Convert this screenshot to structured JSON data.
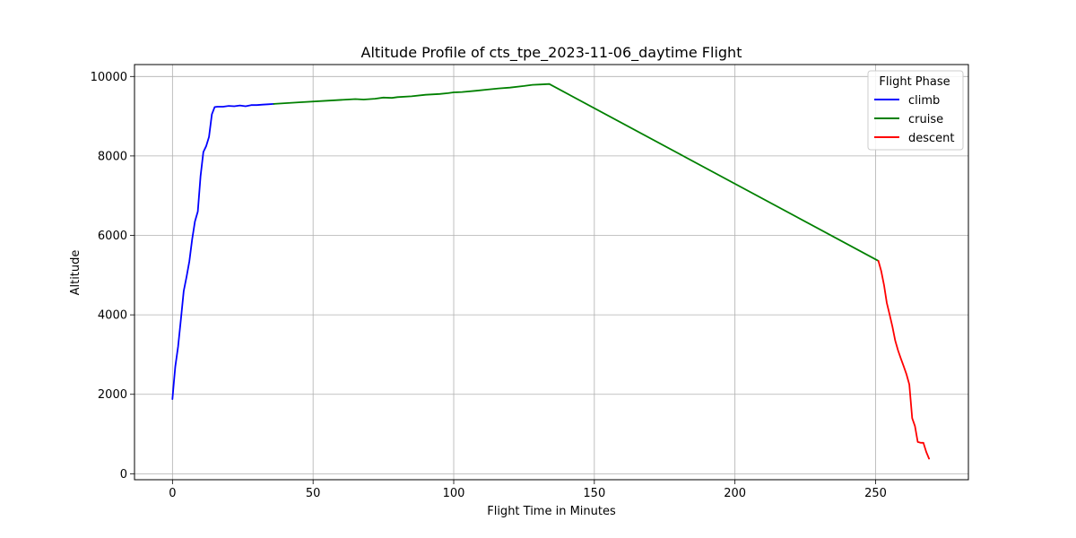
{
  "chart_data": {
    "type": "line",
    "title": "Altitude Profile of cts_tpe_2023-11-06_daytime Flight",
    "xlabel": "Flight Time in Minutes",
    "ylabel": "Altitude",
    "xlim": [
      -13.5,
      283
    ],
    "ylim": [
      -150,
      10300
    ],
    "xticks": [
      0,
      50,
      100,
      150,
      200,
      250
    ],
    "yticks": [
      0,
      2000,
      4000,
      6000,
      8000,
      10000
    ],
    "grid": true,
    "legend": {
      "title": "Flight Phase",
      "placement": "top-right"
    },
    "series": [
      {
        "name": "climb",
        "color": "#0000ff",
        "points": [
          [
            0,
            1880
          ],
          [
            0.5,
            2300
          ],
          [
            1,
            2700
          ],
          [
            2,
            3200
          ],
          [
            3,
            3900
          ],
          [
            4,
            4600
          ],
          [
            5,
            4950
          ],
          [
            6,
            5350
          ],
          [
            7,
            5900
          ],
          [
            8,
            6350
          ],
          [
            9,
            6600
          ],
          [
            10,
            7500
          ],
          [
            11,
            8100
          ],
          [
            12,
            8250
          ],
          [
            13,
            8480
          ],
          [
            14,
            9050
          ],
          [
            15,
            9230
          ],
          [
            16,
            9240
          ],
          [
            18,
            9240
          ],
          [
            20,
            9260
          ],
          [
            22,
            9250
          ],
          [
            24,
            9270
          ],
          [
            26,
            9250
          ],
          [
            28,
            9280
          ],
          [
            30,
            9280
          ],
          [
            32,
            9290
          ],
          [
            34,
            9300
          ],
          [
            36,
            9310
          ]
        ]
      },
      {
        "name": "cruise",
        "color": "#008000",
        "points": [
          [
            36,
            9310
          ],
          [
            45,
            9350
          ],
          [
            55,
            9390
          ],
          [
            65,
            9430
          ],
          [
            68,
            9420
          ],
          [
            72,
            9440
          ],
          [
            75,
            9470
          ],
          [
            78,
            9460
          ],
          [
            80,
            9480
          ],
          [
            85,
            9500
          ],
          [
            90,
            9540
          ],
          [
            95,
            9560
          ],
          [
            98,
            9580
          ],
          [
            100,
            9600
          ],
          [
            103,
            9610
          ],
          [
            108,
            9640
          ],
          [
            112,
            9670
          ],
          [
            116,
            9700
          ],
          [
            120,
            9720
          ],
          [
            125,
            9760
          ],
          [
            128,
            9790
          ],
          [
            131,
            9800
          ],
          [
            134,
            9810
          ],
          [
            251,
            5360
          ]
        ]
      },
      {
        "name": "descent",
        "color": "#ff0000",
        "points": [
          [
            251,
            5360
          ],
          [
            252,
            5100
          ],
          [
            253,
            4750
          ],
          [
            254,
            4300
          ],
          [
            255,
            4000
          ],
          [
            256,
            3700
          ],
          [
            257,
            3350
          ],
          [
            258,
            3100
          ],
          [
            259,
            2900
          ],
          [
            260,
            2700
          ],
          [
            261,
            2500
          ],
          [
            262,
            2250
          ],
          [
            263,
            1400
          ],
          [
            264,
            1200
          ],
          [
            265,
            800
          ],
          [
            266,
            780
          ],
          [
            267,
            780
          ],
          [
            268,
            550
          ],
          [
            269,
            380
          ]
        ]
      }
    ]
  }
}
